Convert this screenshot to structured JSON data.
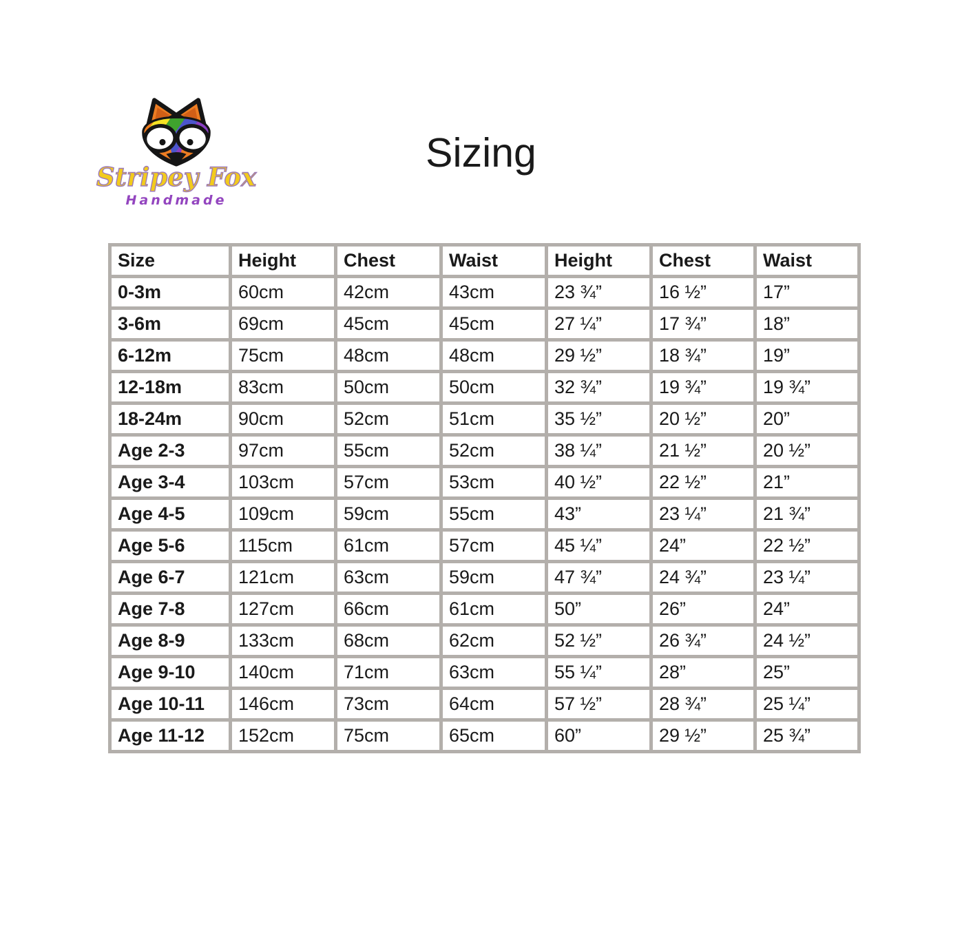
{
  "page": {
    "background": "#ffffff"
  },
  "logo": {
    "brand": "Stripey Fox",
    "tagline": "Handmade",
    "colors": {
      "brand_fill": "#f2cb1d",
      "brand_outline": "#9c79b8",
      "tagline": "#9345bf",
      "fox_orange": "#ed7d23",
      "fox_inner_ear": "#d15f17",
      "fox_outline": "#151515",
      "rainbow": [
        "#e63228",
        "#f07d1e",
        "#f5e224",
        "#3fa32e",
        "#4b55cd",
        "#8a3fc4"
      ]
    }
  },
  "title": "Sizing",
  "table": {
    "border_color": "#b3afab",
    "headers": [
      "Size",
      "Height",
      "Chest",
      "Waist",
      "Height",
      "Chest",
      "Waist"
    ],
    "rows": [
      [
        "0-3m",
        "60cm",
        "42cm",
        "43cm",
        "23 ¾”",
        "16 ½”",
        "17”"
      ],
      [
        "3-6m",
        "69cm",
        "45cm",
        "45cm",
        "27 ¼”",
        "17 ¾”",
        "18”"
      ],
      [
        "6-12m",
        "75cm",
        "48cm",
        "48cm",
        "29 ½”",
        "18 ¾”",
        "19”"
      ],
      [
        "12-18m",
        "83cm",
        "50cm",
        "50cm",
        "32 ¾”",
        "19 ¾”",
        "19 ¾”"
      ],
      [
        "18-24m",
        "90cm",
        "52cm",
        "51cm",
        "35 ½”",
        "20 ½”",
        "20”"
      ],
      [
        "Age 2-3",
        "97cm",
        "55cm",
        "52cm",
        "38 ¼”",
        "21 ½”",
        "20 ½”"
      ],
      [
        "Age 3-4",
        "103cm",
        "57cm",
        "53cm",
        "40 ½”",
        "22 ½”",
        "21”"
      ],
      [
        "Age 4-5",
        "109cm",
        "59cm",
        "55cm",
        "43”",
        "23 ¼”",
        "21 ¾”"
      ],
      [
        "Age 5-6",
        "115cm",
        "61cm",
        "57cm",
        "45 ¼”",
        "24”",
        "22 ½”"
      ],
      [
        "Age 6-7",
        "121cm",
        "63cm",
        "59cm",
        "47 ¾”",
        "24 ¾”",
        "23 ¼”"
      ],
      [
        "Age 7-8",
        "127cm",
        "66cm",
        "61cm",
        "50”",
        "26”",
        "24”"
      ],
      [
        "Age 8-9",
        "133cm",
        "68cm",
        "62cm",
        "52 ½”",
        "26 ¾”",
        "24 ½”"
      ],
      [
        "Age 9-10",
        "140cm",
        "71cm",
        "63cm",
        "55 ¼”",
        "28”",
        "25”"
      ],
      [
        "Age 10-11",
        "146cm",
        "73cm",
        "64cm",
        "57 ½”",
        "28 ¾”",
        "25 ¼”"
      ],
      [
        "Age 11-12",
        "152cm",
        "75cm",
        "65cm",
        "60”",
        "29 ½”",
        "25 ¾”"
      ]
    ]
  }
}
